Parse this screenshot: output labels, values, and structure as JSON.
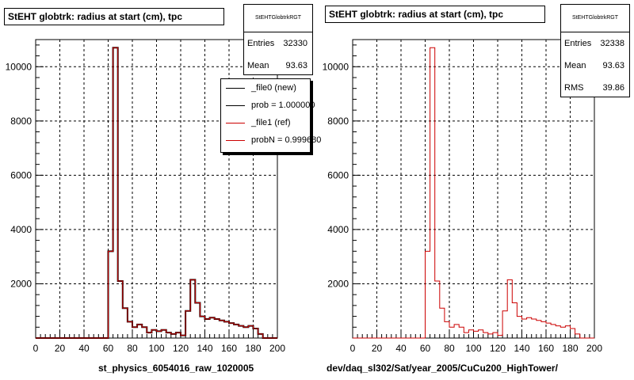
{
  "panels": [
    {
      "title": "StEHT globtrk: radius at start (cm), tpc",
      "stats": {
        "name": "StEHTGlobtrkRGT",
        "rows": [
          {
            "label": "Entries",
            "value": "32330"
          },
          {
            "label": "Mean",
            "value": "93.63"
          }
        ]
      },
      "legend": [
        {
          "text": "_file0 (new)",
          "color": "#000000"
        },
        {
          "text": "prob = 1.000000",
          "color": "#000000"
        },
        {
          "text": "_file1 (ref)",
          "color": "#cc0000"
        },
        {
          "text": "probN = 0.999680",
          "color": "#cc0000"
        }
      ],
      "xtitle": "st_physics_6054016_raw_1020005"
    },
    {
      "title": "StEHT globtrk: radius at start (cm), tpc",
      "stats": {
        "name": "StEHTGlobtrkRGT",
        "rows": [
          {
            "label": "Entries",
            "value": "32338"
          },
          {
            "label": "Mean",
            "value": "93.63"
          },
          {
            "label": "RMS",
            "value": "39.86"
          }
        ]
      },
      "legend": [],
      "xtitle": "dev/daq_sl302/Sat/year_2005/CuCu200_HighTower/"
    }
  ],
  "chart_data": [
    {
      "type": "bar",
      "title": "StEHT globtrk: radius at start (cm), tpc",
      "xlabel": "st_physics_6054016_raw_1020005",
      "ylabel": "",
      "xlim": [
        0,
        200
      ],
      "ylim": [
        0,
        11000
      ],
      "xticks": [
        0,
        20,
        40,
        60,
        80,
        100,
        120,
        140,
        160,
        180,
        200
      ],
      "yticks": [
        2000,
        4000,
        6000,
        8000,
        10000
      ],
      "grid": true,
      "legend_position": "top-right",
      "bin_width": 4,
      "bin_edges_start": 0,
      "series": [
        {
          "name": "_file0 (new)",
          "color": "#000000",
          "values": [
            0,
            0,
            0,
            0,
            0,
            0,
            0,
            0,
            0,
            0,
            0,
            0,
            0,
            0,
            0,
            3200,
            10700,
            2100,
            1100,
            600,
            400,
            500,
            400,
            200,
            300,
            250,
            300,
            200,
            150,
            200,
            100,
            1000,
            2150,
            1300,
            800,
            700,
            750,
            700,
            650,
            600,
            550,
            500,
            450,
            400,
            450,
            350,
            150,
            0,
            0,
            0
          ]
        },
        {
          "name": "_file1 (ref)",
          "color": "#cc0000",
          "values": [
            0,
            0,
            0,
            0,
            0,
            0,
            0,
            0,
            0,
            0,
            0,
            0,
            0,
            0,
            0,
            3200,
            10700,
            2100,
            1100,
            600,
            400,
            500,
            400,
            200,
            300,
            250,
            300,
            200,
            150,
            200,
            100,
            1000,
            2150,
            1300,
            800,
            700,
            750,
            700,
            650,
            600,
            550,
            500,
            450,
            400,
            450,
            350,
            150,
            0,
            0,
            0
          ]
        }
      ]
    },
    {
      "type": "bar",
      "title": "StEHT globtrk: radius at start (cm), tpc",
      "xlabel": "dev/daq_sl302/Sat/year_2005/CuCu200_HighTower/",
      "ylabel": "",
      "xlim": [
        0,
        200
      ],
      "ylim": [
        0,
        11000
      ],
      "xticks": [
        0,
        20,
        40,
        60,
        80,
        100,
        120,
        140,
        160,
        180,
        200
      ],
      "yticks": [
        2000,
        4000,
        6000,
        8000,
        10000
      ],
      "grid": true,
      "bin_width": 4,
      "bin_edges_start": 0,
      "series": [
        {
          "name": "",
          "color": "#cc0000",
          "values": [
            0,
            0,
            0,
            0,
            0,
            0,
            0,
            0,
            0,
            0,
            0,
            0,
            0,
            0,
            0,
            3200,
            10700,
            2100,
            1100,
            600,
            400,
            500,
            400,
            200,
            300,
            250,
            300,
            200,
            150,
            200,
            100,
            1000,
            2150,
            1300,
            800,
            700,
            750,
            700,
            650,
            600,
            550,
            500,
            450,
            400,
            450,
            350,
            150,
            0,
            0,
            0
          ]
        }
      ]
    }
  ]
}
